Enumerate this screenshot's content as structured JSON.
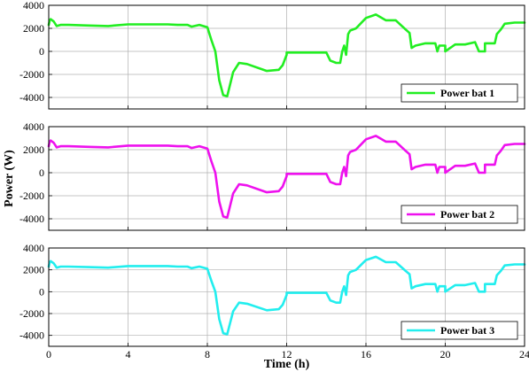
{
  "chart_data": [
    {
      "type": "line",
      "series": [
        {
          "name": "Power bat 1",
          "color": "#22ee22",
          "x": [
            0,
            0.05,
            0.1,
            0.25,
            0.4,
            0.6,
            1,
            2,
            3,
            4,
            5,
            6,
            6.5,
            7,
            7.2,
            7.6,
            8,
            8.2,
            8.4,
            8.6,
            8.8,
            9,
            9.3,
            9.6,
            10,
            11,
            11.6,
            11.8,
            12,
            12,
            13,
            14,
            14.2,
            14.5,
            14.7,
            14.8,
            14.9,
            15,
            15.1,
            15.2,
            15.5,
            16,
            16.5,
            17,
            17.5,
            18,
            18.2,
            18.3,
            18.5,
            19,
            19.5,
            19.6,
            19.7,
            20,
            20,
            20.5,
            21,
            21.5,
            21.7,
            22,
            22,
            22.5,
            22.6,
            22.8,
            23,
            23.5,
            24
          ],
          "y": [
            2300,
            2700,
            2800,
            2600,
            2200,
            2300,
            2300,
            2250,
            2200,
            2350,
            2350,
            2350,
            2300,
            2300,
            2150,
            2300,
            2100,
            1000,
            0,
            -2500,
            -3800,
            -3900,
            -1800,
            -1000,
            -1100,
            -1700,
            -1600,
            -1200,
            -300,
            -100,
            -100,
            -100,
            -800,
            -1000,
            -1000,
            0,
            500,
            -300,
            1500,
            1800,
            2000,
            2900,
            3200,
            2700,
            2700,
            1900,
            1600,
            300,
            500,
            700,
            700,
            0,
            500,
            500,
            0,
            600,
            600,
            800,
            0,
            0,
            700,
            700,
            1500,
            1900,
            2400,
            2500,
            2500
          ]
        }
      ],
      "xlim": [
        0,
        24
      ],
      "xticks": [
        0,
        4,
        8,
        12,
        16,
        20,
        24
      ],
      "ylim": [
        -5000,
        4000
      ],
      "yticks": [
        -4000,
        -2000,
        0,
        2000,
        4000
      ],
      "legend_position": "lower-right",
      "grid": true
    },
    {
      "type": "line",
      "series": [
        {
          "name": "Power bat 2",
          "color": "#ee11ee",
          "x": [
            0,
            0.05,
            0.1,
            0.25,
            0.4,
            0.6,
            1,
            2,
            3,
            4,
            5,
            6,
            6.5,
            7,
            7.2,
            7.6,
            8,
            8.2,
            8.4,
            8.6,
            8.8,
            9,
            9.3,
            9.6,
            10,
            11,
            11.6,
            11.8,
            12,
            12,
            13,
            14,
            14.2,
            14.5,
            14.7,
            14.8,
            14.9,
            15,
            15.1,
            15.2,
            15.5,
            16,
            16.5,
            17,
            17.5,
            18,
            18.2,
            18.3,
            18.5,
            19,
            19.5,
            19.6,
            19.7,
            20,
            20,
            20.5,
            21,
            21.5,
            21.7,
            22,
            22,
            22.5,
            22.6,
            22.8,
            23,
            23.5,
            24
          ],
          "y": [
            2300,
            2700,
            2800,
            2600,
            2200,
            2300,
            2300,
            2250,
            2200,
            2350,
            2350,
            2350,
            2300,
            2300,
            2150,
            2300,
            2100,
            1000,
            0,
            -2500,
            -3800,
            -3900,
            -1800,
            -1000,
            -1100,
            -1700,
            -1600,
            -1200,
            -300,
            -100,
            -100,
            -100,
            -800,
            -1000,
            -1000,
            0,
            500,
            -300,
            1500,
            1800,
            2000,
            2900,
            3200,
            2700,
            2700,
            1900,
            1600,
            300,
            500,
            700,
            700,
            0,
            500,
            500,
            0,
            600,
            600,
            800,
            0,
            0,
            700,
            700,
            1500,
            1900,
            2400,
            2500,
            2500
          ]
        }
      ],
      "xlim": [
        0,
        24
      ],
      "xticks": [
        0,
        4,
        8,
        12,
        16,
        20,
        24
      ],
      "ylim": [
        -5000,
        4000
      ],
      "yticks": [
        -4000,
        -2000,
        0,
        2000,
        4000
      ],
      "ylabel": "Power (W)",
      "legend_position": "lower-right",
      "grid": true
    },
    {
      "type": "line",
      "series": [
        {
          "name": "Power bat 3",
          "color": "#22eeee",
          "x": [
            0,
            0.05,
            0.1,
            0.25,
            0.4,
            0.6,
            1,
            2,
            3,
            4,
            5,
            6,
            6.5,
            7,
            7.2,
            7.6,
            8,
            8.2,
            8.4,
            8.6,
            8.8,
            9,
            9.3,
            9.6,
            10,
            11,
            11.6,
            11.8,
            12,
            12,
            13,
            14,
            14.2,
            14.5,
            14.7,
            14.8,
            14.9,
            15,
            15.1,
            15.2,
            15.5,
            16,
            16.5,
            17,
            17.5,
            18,
            18.2,
            18.3,
            18.5,
            19,
            19.5,
            19.6,
            19.7,
            20,
            20,
            20.5,
            21,
            21.5,
            21.7,
            22,
            22,
            22.5,
            22.6,
            22.8,
            23,
            23.5,
            24
          ],
          "y": [
            2300,
            2700,
            2800,
            2600,
            2200,
            2300,
            2300,
            2250,
            2200,
            2350,
            2350,
            2350,
            2300,
            2300,
            2150,
            2300,
            2100,
            1000,
            0,
            -2500,
            -3800,
            -3900,
            -1800,
            -1000,
            -1100,
            -1700,
            -1600,
            -1200,
            -300,
            -100,
            -100,
            -100,
            -800,
            -1000,
            -1000,
            0,
            500,
            -300,
            1500,
            1800,
            2000,
            2900,
            3200,
            2700,
            2700,
            1900,
            1600,
            300,
            500,
            700,
            700,
            0,
            500,
            500,
            0,
            600,
            600,
            800,
            0,
            0,
            700,
            700,
            1500,
            1900,
            2400,
            2500,
            2500
          ]
        }
      ],
      "xlim": [
        0,
        24
      ],
      "xticks": [
        0,
        4,
        8,
        12,
        16,
        20,
        24
      ],
      "ylim": [
        -5000,
        4000
      ],
      "yticks": [
        -4000,
        -2000,
        0,
        2000,
        4000
      ],
      "xlabel": "Time (h)",
      "legend_position": "lower-right",
      "grid": true
    }
  ]
}
